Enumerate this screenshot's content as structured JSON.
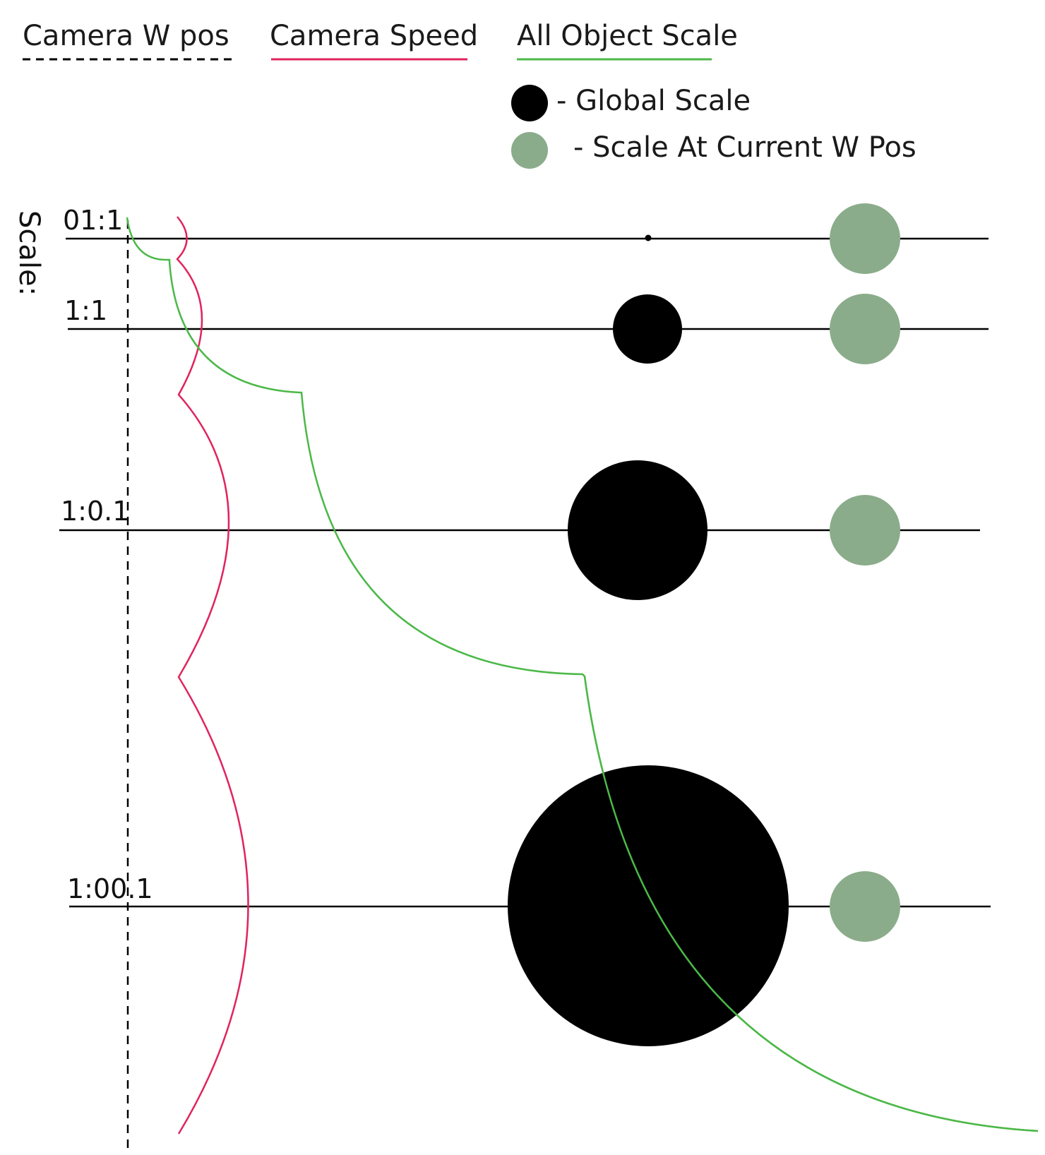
{
  "legend": {
    "camera_w_pos": {
      "label": "Camera W pos",
      "color": "#000000",
      "style": "dashed"
    },
    "camera_speed": {
      "label": "Camera Speed",
      "color": "#e0245e",
      "style": "solid"
    },
    "all_object_scale": {
      "label": "All Object Scale",
      "color": "#4cb848",
      "style": "solid"
    },
    "global_scale": {
      "label": "- Global Scale",
      "color": "#000000",
      "icon": "filled-circle-icon"
    },
    "scale_at_current_w_pos": {
      "label": "- Scale At Current W Pos",
      "color": "#8aac8a",
      "icon": "filled-circle-icon"
    }
  },
  "axis_title": "Scale:",
  "scale_levels": [
    {
      "label": "01:1"
    },
    {
      "label": "1:1"
    },
    {
      "label": "1:0.1"
    },
    {
      "label": "1:00.1"
    }
  ]
}
